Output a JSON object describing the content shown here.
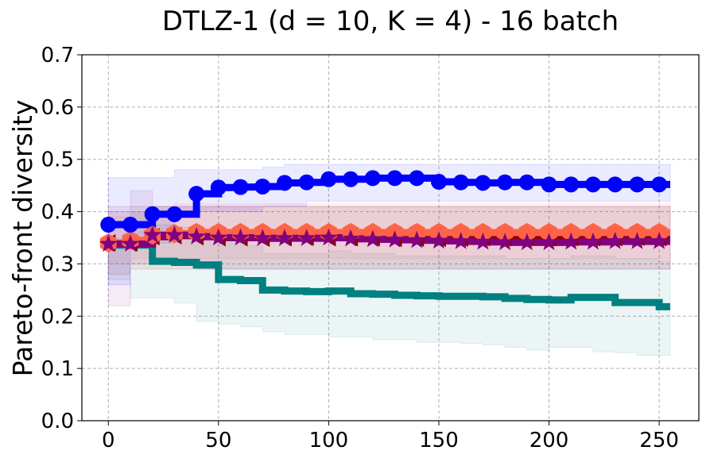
{
  "chart_data": {
    "type": "line",
    "title": "DTLZ-1 (d = 10, K = 4) - 16 batch",
    "xlabel": "",
    "ylabel": "Pareto-front diversity",
    "xlim": [
      -12,
      268
    ],
    "ylim": [
      0.0,
      0.7
    ],
    "xticks": [
      0,
      50,
      100,
      150,
      200,
      250
    ],
    "xtick_labels": [
      "0",
      "50",
      "100",
      "150",
      "200",
      "250"
    ],
    "yticks": [
      0.0,
      0.1,
      0.2,
      0.3,
      0.4,
      0.5,
      0.6,
      0.7
    ],
    "ytick_labels": [
      "0.0",
      "0.1",
      "0.2",
      "0.3",
      "0.4",
      "0.5",
      "0.6",
      "0.7"
    ],
    "grid": true,
    "x": [
      0,
      10,
      20,
      30,
      40,
      50,
      60,
      70,
      80,
      90,
      100,
      110,
      120,
      130,
      140,
      150,
      160,
      170,
      180,
      190,
      200,
      210,
      220,
      230,
      240,
      250,
      255
    ],
    "series": [
      {
        "name": "teal",
        "color": "#008080",
        "marker": "none",
        "values": [
          0.336,
          0.336,
          0.305,
          0.303,
          0.298,
          0.27,
          0.268,
          0.25,
          0.248,
          0.247,
          0.248,
          0.243,
          0.242,
          0.24,
          0.239,
          0.238,
          0.238,
          0.237,
          0.234,
          0.232,
          0.231,
          0.236,
          0.236,
          0.226,
          0.226,
          0.218,
          0.218
        ],
        "lower": [
          0.336,
          0.27,
          0.235,
          0.235,
          0.225,
          0.19,
          0.185,
          0.18,
          0.17,
          0.165,
          0.165,
          0.16,
          0.16,
          0.155,
          0.155,
          0.15,
          0.15,
          0.148,
          0.145,
          0.14,
          0.135,
          0.14,
          0.14,
          0.132,
          0.13,
          0.125,
          0.125
        ],
        "upper": [
          0.336,
          0.4,
          0.375,
          0.37,
          0.36,
          0.34,
          0.335,
          0.32,
          0.32,
          0.32,
          0.325,
          0.32,
          0.32,
          0.315,
          0.315,
          0.315,
          0.315,
          0.315,
          0.31,
          0.31,
          0.31,
          0.315,
          0.315,
          0.31,
          0.31,
          0.305,
          0.305
        ]
      },
      {
        "name": "dark red",
        "color": "#8b0000",
        "marker": "triangle-left",
        "values": [
          0.34,
          0.34,
          0.352,
          0.354,
          0.352,
          0.35,
          0.35,
          0.349,
          0.35,
          0.351,
          0.35,
          0.35,
          0.35,
          0.349,
          0.349,
          0.349,
          0.349,
          0.35,
          0.35,
          0.351,
          0.35,
          0.35,
          0.35,
          0.35,
          0.351,
          0.35,
          0.35
        ],
        "lower": [
          0.3,
          0.28,
          0.29,
          0.29,
          0.29,
          0.29,
          0.29,
          0.29,
          0.29,
          0.29,
          0.29,
          0.29,
          0.29,
          0.29,
          0.29,
          0.29,
          0.29,
          0.29,
          0.29,
          0.29,
          0.29,
          0.29,
          0.29,
          0.29,
          0.29,
          0.29,
          0.29
        ],
        "upper": [
          0.4,
          0.41,
          0.41,
          0.41,
          0.41,
          0.41,
          0.41,
          0.41,
          0.41,
          0.41,
          0.41,
          0.41,
          0.41,
          0.41,
          0.41,
          0.41,
          0.41,
          0.41,
          0.41,
          0.41,
          0.41,
          0.41,
          0.41,
          0.41,
          0.41,
          0.41,
          0.41
        ]
      },
      {
        "name": "tomato",
        "color": "#ff6347",
        "marker": "hexagon",
        "values": [
          0.34,
          0.345,
          0.355,
          0.358,
          0.36,
          0.36,
          0.36,
          0.36,
          0.36,
          0.36,
          0.36,
          0.36,
          0.36,
          0.36,
          0.36,
          0.36,
          0.36,
          0.36,
          0.36,
          0.36,
          0.36,
          0.36,
          0.36,
          0.36,
          0.36,
          0.36,
          0.36
        ],
        "lower": [
          0.3,
          0.3,
          0.31,
          0.31,
          0.31,
          0.31,
          0.31,
          0.31,
          0.31,
          0.31,
          0.31,
          0.31,
          0.31,
          0.31,
          0.31,
          0.31,
          0.31,
          0.31,
          0.31,
          0.31,
          0.31,
          0.31,
          0.31,
          0.31,
          0.31,
          0.31,
          0.31
        ],
        "upper": [
          0.39,
          0.4,
          0.41,
          0.415,
          0.415,
          0.415,
          0.415,
          0.415,
          0.415,
          0.415,
          0.415,
          0.415,
          0.415,
          0.415,
          0.415,
          0.415,
          0.415,
          0.415,
          0.415,
          0.415,
          0.415,
          0.415,
          0.415,
          0.415,
          0.415,
          0.415,
          0.415
        ]
      },
      {
        "name": "purple",
        "color": "#800080",
        "marker": "star",
        "values": [
          0.338,
          0.338,
          0.355,
          0.355,
          0.352,
          0.35,
          0.35,
          0.349,
          0.349,
          0.349,
          0.35,
          0.348,
          0.347,
          0.346,
          0.345,
          0.344,
          0.343,
          0.342,
          0.341,
          0.341,
          0.341,
          0.342,
          0.342,
          0.343,
          0.343,
          0.343,
          0.343
        ],
        "lower": [
          0.26,
          0.22,
          0.3,
          0.3,
          0.3,
          0.29,
          0.29,
          0.29,
          0.29,
          0.29,
          0.29,
          0.29,
          0.29,
          0.29,
          0.29,
          0.29,
          0.29,
          0.29,
          0.29,
          0.29,
          0.29,
          0.29,
          0.29,
          0.29,
          0.29,
          0.29,
          0.29
        ],
        "upper": [
          0.41,
          0.44,
          0.41,
          0.41,
          0.41,
          0.41,
          0.41,
          0.41,
          0.41,
          0.41,
          0.41,
          0.41,
          0.41,
          0.41,
          0.41,
          0.41,
          0.41,
          0.41,
          0.41,
          0.41,
          0.41,
          0.41,
          0.41,
          0.41,
          0.41,
          0.41,
          0.41
        ]
      },
      {
        "name": "blue",
        "color": "#0000ff",
        "marker": "circle",
        "values": [
          0.375,
          0.375,
          0.395,
          0.395,
          0.434,
          0.446,
          0.447,
          0.448,
          0.455,
          0.456,
          0.462,
          0.462,
          0.464,
          0.464,
          0.464,
          0.457,
          0.456,
          0.455,
          0.456,
          0.456,
          0.452,
          0.452,
          0.452,
          0.452,
          0.452,
          0.452,
          0.452
        ],
        "lower": [
          0.28,
          0.26,
          0.34,
          0.34,
          0.4,
          0.4,
          0.4,
          0.4,
          0.41,
          0.41,
          0.42,
          0.42,
          0.42,
          0.42,
          0.42,
          0.42,
          0.42,
          0.42,
          0.42,
          0.42,
          0.42,
          0.42,
          0.42,
          0.42,
          0.42,
          0.42,
          0.42
        ],
        "upper": [
          0.465,
          0.465,
          0.465,
          0.48,
          0.48,
          0.48,
          0.48,
          0.485,
          0.49,
          0.49,
          0.49,
          0.49,
          0.49,
          0.49,
          0.49,
          0.49,
          0.49,
          0.49,
          0.49,
          0.49,
          0.49,
          0.49,
          0.49,
          0.49,
          0.49,
          0.49,
          0.49
        ]
      }
    ]
  }
}
